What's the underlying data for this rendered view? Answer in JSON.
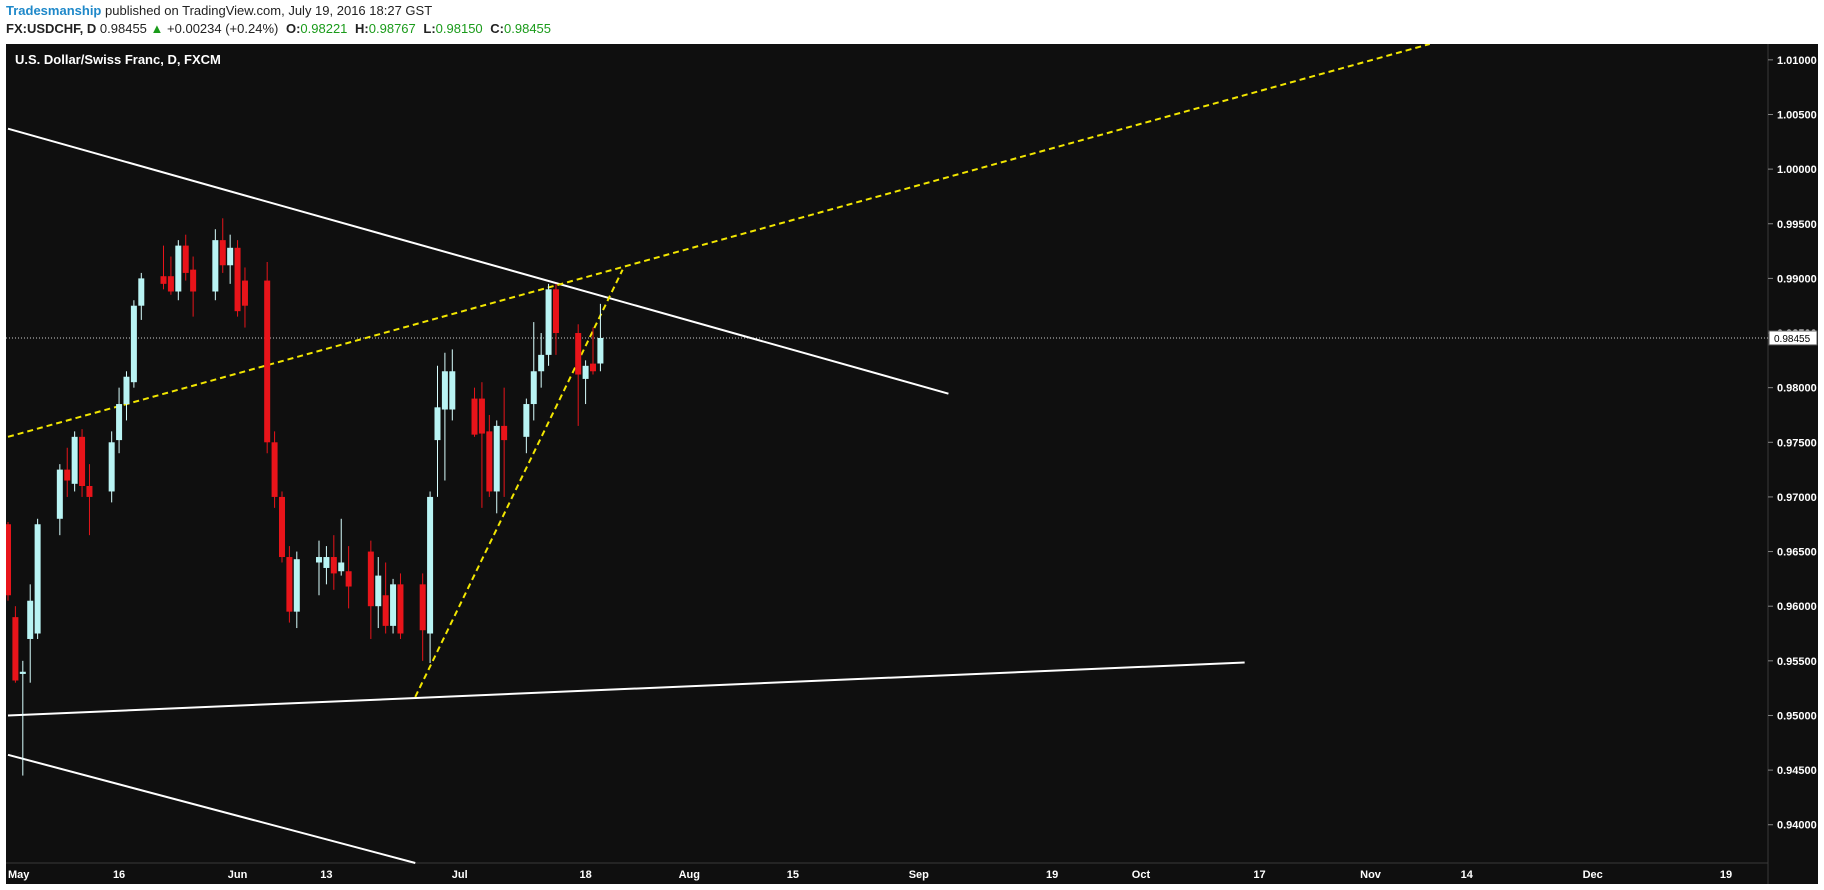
{
  "header": {
    "author": "Tradesmanship",
    "published": "published on TradingView.com, July 19, 2016 18:27 GST",
    "symbol": "FX:USDCHF, D",
    "last": "0.98455",
    "change_arrow": "▲",
    "change": "+0.00234 (+0.24%)",
    "o_label": "O:",
    "o_value": "0.98221",
    "h_label": "H:",
    "h_value": "0.98767",
    "l_label": "L:",
    "l_value": "0.98150",
    "c_label": "C:",
    "c_value": "0.98455"
  },
  "colors": {
    "background": "#0f0f0f",
    "up": "#b9f4f4",
    "down": "#e8141a",
    "trendline": "#ffffff",
    "dashed": "#f2e600",
    "axis_text": "#ffffff"
  },
  "chart_data": {
    "type": "candlestick",
    "title": "U.S. Dollar/Swiss Franc, D, FXCM",
    "price_axis_side": "right",
    "ylim": [
      0.93659,
      1.01145
    ],
    "y_ticks": [
      "1.01000",
      "1.00500",
      "1.00000",
      "0.99500",
      "0.99000",
      "0.98500",
      "0.98000",
      "0.97500",
      "0.97000",
      "0.96500",
      "0.96000",
      "0.95500",
      "0.95000",
      "0.94500",
      "0.94000"
    ],
    "current_price_label": "0.98455",
    "current_price": 0.98455,
    "x_ticks": [
      {
        "day": 0,
        "label": "May"
      },
      {
        "day": 15,
        "label": "16"
      },
      {
        "day": 31,
        "label": "Jun"
      },
      {
        "day": 43,
        "label": "13"
      },
      {
        "day": 61,
        "label": "Jul"
      },
      {
        "day": 78,
        "label": "18"
      },
      {
        "day": 92,
        "label": "Aug"
      },
      {
        "day": 106,
        "label": "15"
      },
      {
        "day": 123,
        "label": "Sep"
      },
      {
        "day": 141,
        "label": "19"
      },
      {
        "day": 153,
        "label": "Oct"
      },
      {
        "day": 169,
        "label": "17"
      },
      {
        "day": 184,
        "label": "Nov"
      },
      {
        "day": 197,
        "label": "14"
      },
      {
        "day": 214,
        "label": "Dec"
      },
      {
        "day": 232,
        "label": "19"
      }
    ],
    "xlim_days": [
      0,
      237
    ],
    "candles": [
      {
        "d": 0,
        "o": 0.9675,
        "h": 0.9677,
        "l": 0.9605,
        "c": 0.961
      },
      {
        "d": 1,
        "o": 0.959,
        "h": 0.96,
        "l": 0.953,
        "c": 0.9532
      },
      {
        "d": 2,
        "o": 0.9538,
        "h": 0.955,
        "l": 0.9445,
        "c": 0.954
      },
      {
        "d": 3,
        "o": 0.957,
        "h": 0.962,
        "l": 0.953,
        "c": 0.9605
      },
      {
        "d": 4,
        "o": 0.9575,
        "h": 0.968,
        "l": 0.957,
        "c": 0.9675
      },
      {
        "d": 7,
        "o": 0.968,
        "h": 0.973,
        "l": 0.9665,
        "c": 0.9725
      },
      {
        "d": 8,
        "o": 0.9725,
        "h": 0.9745,
        "l": 0.97,
        "c": 0.9715
      },
      {
        "d": 9,
        "o": 0.9712,
        "h": 0.976,
        "l": 0.9705,
        "c": 0.9755
      },
      {
        "d": 10,
        "o": 0.9755,
        "h": 0.9762,
        "l": 0.97,
        "c": 0.971
      },
      {
        "d": 11,
        "o": 0.971,
        "h": 0.973,
        "l": 0.9665,
        "c": 0.97
      },
      {
        "d": 14,
        "o": 0.9705,
        "h": 0.976,
        "l": 0.9695,
        "c": 0.975
      },
      {
        "d": 15,
        "o": 0.9752,
        "h": 0.98,
        "l": 0.974,
        "c": 0.9785
      },
      {
        "d": 16,
        "o": 0.9785,
        "h": 0.9815,
        "l": 0.977,
        "c": 0.981
      },
      {
        "d": 17,
        "o": 0.9805,
        "h": 0.988,
        "l": 0.98,
        "c": 0.9875
      },
      {
        "d": 18,
        "o": 0.9875,
        "h": 0.9905,
        "l": 0.9862,
        "c": 0.99
      },
      {
        "d": 21,
        "o": 0.9902,
        "h": 0.993,
        "l": 0.989,
        "c": 0.9895
      },
      {
        "d": 22,
        "o": 0.9902,
        "h": 0.992,
        "l": 0.9885,
        "c": 0.9888
      },
      {
        "d": 23,
        "o": 0.9888,
        "h": 0.9935,
        "l": 0.988,
        "c": 0.993
      },
      {
        "d": 24,
        "o": 0.993,
        "h": 0.994,
        "l": 0.9898,
        "c": 0.9905
      },
      {
        "d": 25,
        "o": 0.9908,
        "h": 0.992,
        "l": 0.9865,
        "c": 0.9888
      },
      {
        "d": 28,
        "o": 0.9888,
        "h": 0.9945,
        "l": 0.988,
        "c": 0.9935
      },
      {
        "d": 29,
        "o": 0.9935,
        "h": 0.9955,
        "l": 0.9905,
        "c": 0.9912
      },
      {
        "d": 30,
        "o": 0.9912,
        "h": 0.994,
        "l": 0.9895,
        "c": 0.9928
      },
      {
        "d": 31,
        "o": 0.9928,
        "h": 0.9935,
        "l": 0.9865,
        "c": 0.987
      },
      {
        "d": 32,
        "o": 0.9898,
        "h": 0.991,
        "l": 0.9855,
        "c": 0.9875
      },
      {
        "d": 35,
        "o": 0.9898,
        "h": 0.9915,
        "l": 0.974,
        "c": 0.975
      },
      {
        "d": 36,
        "o": 0.975,
        "h": 0.976,
        "l": 0.969,
        "c": 0.97
      },
      {
        "d": 37,
        "o": 0.97,
        "h": 0.9705,
        "l": 0.964,
        "c": 0.9645
      },
      {
        "d": 38,
        "o": 0.9645,
        "h": 0.9655,
        "l": 0.9585,
        "c": 0.9595
      },
      {
        "d": 39,
        "o": 0.9595,
        "h": 0.965,
        "l": 0.958,
        "c": 0.9643
      },
      {
        "d": 42,
        "o": 0.964,
        "h": 0.966,
        "l": 0.961,
        "c": 0.9645
      },
      {
        "d": 43,
        "o": 0.9635,
        "h": 0.9655,
        "l": 0.962,
        "c": 0.9645
      },
      {
        "d": 44,
        "o": 0.9645,
        "h": 0.9665,
        "l": 0.9615,
        "c": 0.963
      },
      {
        "d": 45,
        "o": 0.9632,
        "h": 0.968,
        "l": 0.9628,
        "c": 0.964
      },
      {
        "d": 46,
        "o": 0.9632,
        "h": 0.9655,
        "l": 0.9598,
        "c": 0.9618
      },
      {
        "d": 49,
        "o": 0.965,
        "h": 0.966,
        "l": 0.957,
        "c": 0.96
      },
      {
        "d": 50,
        "o": 0.96,
        "h": 0.9645,
        "l": 0.958,
        "c": 0.9628
      },
      {
        "d": 51,
        "o": 0.961,
        "h": 0.964,
        "l": 0.9575,
        "c": 0.9582
      },
      {
        "d": 52,
        "o": 0.9582,
        "h": 0.9625,
        "l": 0.9575,
        "c": 0.962
      },
      {
        "d": 53,
        "o": 0.962,
        "h": 0.963,
        "l": 0.957,
        "c": 0.9575
      },
      {
        "d": 56,
        "o": 0.962,
        "h": 0.963,
        "l": 0.955,
        "c": 0.9578
      },
      {
        "d": 57,
        "o": 0.9575,
        "h": 0.9705,
        "l": 0.9548,
        "c": 0.97
      },
      {
        "d": 58,
        "o": 0.9752,
        "h": 0.982,
        "l": 0.97,
        "c": 0.9782
      },
      {
        "d": 59,
        "o": 0.978,
        "h": 0.9832,
        "l": 0.9715,
        "c": 0.9815
      },
      {
        "d": 60,
        "o": 0.978,
        "h": 0.9835,
        "l": 0.977,
        "c": 0.9815
      },
      {
        "d": 63,
        "o": 0.979,
        "h": 0.98,
        "l": 0.9755,
        "c": 0.9757
      },
      {
        "d": 64,
        "o": 0.979,
        "h": 0.9805,
        "l": 0.969,
        "c": 0.9758
      },
      {
        "d": 65,
        "o": 0.976,
        "h": 0.9775,
        "l": 0.97,
        "c": 0.9705
      },
      {
        "d": 66,
        "o": 0.9705,
        "h": 0.977,
        "l": 0.9685,
        "c": 0.9765
      },
      {
        "d": 67,
        "o": 0.9765,
        "h": 0.98,
        "l": 0.97,
        "c": 0.9752
      },
      {
        "d": 70,
        "o": 0.9755,
        "h": 0.979,
        "l": 0.974,
        "c": 0.9785
      },
      {
        "d": 71,
        "o": 0.9785,
        "h": 0.986,
        "l": 0.977,
        "c": 0.9815
      },
      {
        "d": 72,
        "o": 0.9815,
        "h": 0.985,
        "l": 0.98,
        "c": 0.983
      },
      {
        "d": 73,
        "o": 0.983,
        "h": 0.9895,
        "l": 0.982,
        "c": 0.989
      },
      {
        "d": 74,
        "o": 0.989,
        "h": 0.9895,
        "l": 0.983,
        "c": 0.985
      },
      {
        "d": 77,
        "o": 0.985,
        "h": 0.9858,
        "l": 0.9765,
        "c": 0.9812
      },
      {
        "d": 78,
        "o": 0.9808,
        "h": 0.9825,
        "l": 0.9785,
        "c": 0.982
      },
      {
        "d": 79,
        "o": 0.9822,
        "h": 0.9855,
        "l": 0.9812,
        "c": 0.9815
      },
      {
        "d": 80,
        "o": 0.98221,
        "h": 0.98767,
        "l": 0.9815,
        "c": 0.98455
      }
    ],
    "trendlines": [
      {
        "style": "solid",
        "p1": {
          "d": 0,
          "p": 1.0037
        },
        "p2": {
          "d": 127,
          "p": 0.97945
        }
      },
      {
        "style": "solid",
        "p1": {
          "d": 0,
          "p": 0.95
        },
        "p2": {
          "d": 167,
          "p": 0.95485
        }
      },
      {
        "style": "solid",
        "p1": {
          "d": 0,
          "p": 0.9464
        },
        "p2": {
          "d": 55,
          "p": 0.9365
        }
      },
      {
        "style": "dashed",
        "p1": {
          "d": 0,
          "p": 0.9755
        },
        "p2": {
          "d": 192,
          "p": 1.01145
        }
      },
      {
        "style": "dashed",
        "p1": {
          "d": 55,
          "p": 0.9517
        },
        "p2": {
          "d": 83,
          "p": 0.9908
        }
      }
    ]
  }
}
